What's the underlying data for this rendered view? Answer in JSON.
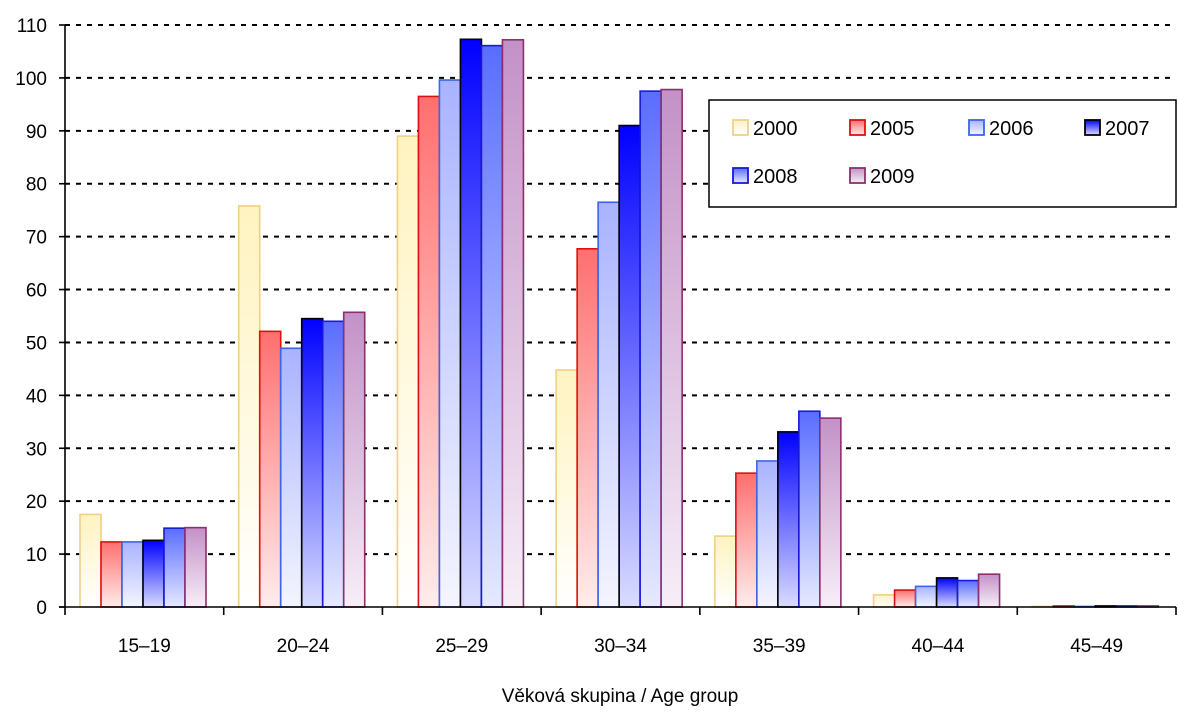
{
  "chart_data": {
    "type": "bar",
    "title": "",
    "xlabel": "Věková skupina / Age group",
    "ylabel": "",
    "ylim": [
      0,
      110
    ],
    "yticks": [
      0,
      10,
      20,
      30,
      40,
      50,
      60,
      70,
      80,
      90,
      100,
      110
    ],
    "grid": "horizontal dashed",
    "legend_position": "top-right",
    "categories": [
      "15–19",
      "20–24",
      "25–29",
      "30–34",
      "35–39",
      "40–44",
      "45–49"
    ],
    "series": [
      {
        "name": "2000",
        "values": [
          17.5,
          75.8,
          89.0,
          44.8,
          13.4,
          2.3,
          0.1
        ],
        "color_top": "#fff3c0",
        "color_bottom": "#ffffff",
        "stroke": "#f2cf86"
      },
      {
        "name": "2005",
        "values": [
          12.3,
          52.1,
          96.5,
          67.7,
          25.3,
          3.2,
          0.2
        ],
        "color_top": "#ff6f6f",
        "color_bottom": "#ffecec",
        "stroke": "#e01010"
      },
      {
        "name": "2006",
        "values": [
          12.3,
          48.9,
          99.6,
          76.5,
          27.6,
          3.9,
          0.1
        ],
        "color_top": "#a9b3ff",
        "color_bottom": "#f4f5ff",
        "stroke": "#3a66e8"
      },
      {
        "name": "2007",
        "values": [
          12.6,
          54.5,
          107.3,
          91.0,
          33.1,
          5.5,
          0.2
        ],
        "color_top": "#0000ff",
        "color_bottom": "#d9dcff",
        "stroke": "#000000"
      },
      {
        "name": "2008",
        "values": [
          14.9,
          54.0,
          106.1,
          97.5,
          37.0,
          5.0,
          0.2
        ],
        "color_top": "#5a6dff",
        "color_bottom": "#e6e9ff",
        "stroke": "#1818e0"
      },
      {
        "name": "2009",
        "values": [
          15.0,
          55.7,
          107.2,
          97.8,
          35.7,
          6.2,
          0.2
        ],
        "color_top": "#c391c7",
        "color_bottom": "#f7eef8",
        "stroke": "#8e2f6c"
      }
    ]
  }
}
